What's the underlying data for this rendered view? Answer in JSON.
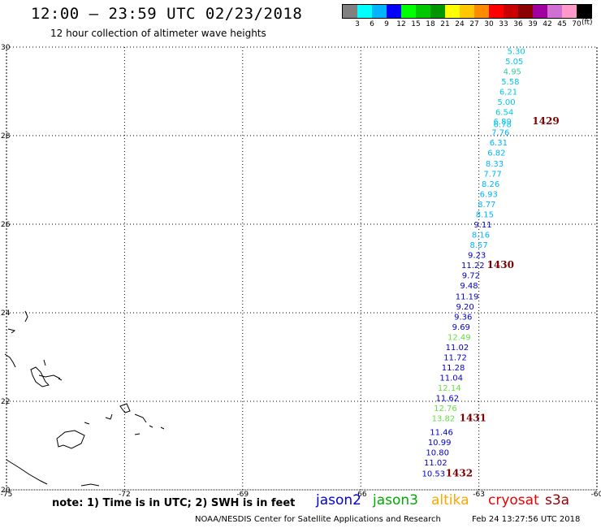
{
  "header": {
    "title": "12:00 – 23:59 UTC 02/23/2018",
    "subtitle": "12 hour collection of altimeter wave heights"
  },
  "legend": {
    "colors": [
      "#808080",
      "#00ffff",
      "#00b4ff",
      "#0000ff",
      "#00ff00",
      "#00c800",
      "#009600",
      "#ffff00",
      "#ffc800",
      "#ff8c00",
      "#ff0000",
      "#c80000",
      "#8b0000",
      "#a000a0",
      "#d070d0",
      "#ff99cc",
      "#000000"
    ],
    "labels": [
      "3",
      "6",
      "9",
      "12",
      "15",
      "18",
      "21",
      "24",
      "27",
      "30",
      "33",
      "36",
      "39",
      "42",
      "45",
      "70"
    ],
    "unit": "(ft)"
  },
  "axes": {
    "lat_labels": [
      "30",
      "28",
      "26",
      "24",
      "22",
      "20"
    ],
    "lon_labels": [
      "-75",
      "-72",
      "-69",
      "-66",
      "-63",
      "-60"
    ]
  },
  "swh_points": [
    {
      "lat": 29.92,
      "lon": -62.05,
      "value": "5.30",
      "color": "#00c8e8"
    },
    {
      "lat": 29.69,
      "lon": -62.1,
      "value": "5.05",
      "color": "#00c8e8"
    },
    {
      "lat": 29.46,
      "lon": -62.15,
      "value": "4.95",
      "color": "#33cc99"
    },
    {
      "lat": 29.23,
      "lon": -62.2,
      "value": "5.58",
      "color": "#00c8e8"
    },
    {
      "lat": 29.0,
      "lon": -62.25,
      "value": "6.21",
      "color": "#00c8e8"
    },
    {
      "lat": 28.77,
      "lon": -62.3,
      "value": "5.00",
      "color": "#00c8e8"
    },
    {
      "lat": 28.54,
      "lon": -62.35,
      "value": "6.54",
      "color": "#00c8e8"
    },
    {
      "lat": 28.33,
      "lon": -62.4,
      "value": "6.89",
      "color": "#00c8e8"
    },
    {
      "lat": 28.27,
      "lon": -62.4,
      "value": "6.78",
      "color": "#00c8e8"
    },
    {
      "lat": 28.08,
      "lon": -62.45,
      "value": "7.76",
      "color": "#00b4ff"
    },
    {
      "lat": 27.85,
      "lon": -62.5,
      "value": "6.31",
      "color": "#00b4ff"
    },
    {
      "lat": 27.62,
      "lon": -62.55,
      "value": "6.82",
      "color": "#00b4ff"
    },
    {
      "lat": 27.38,
      "lon": -62.6,
      "value": "8.33",
      "color": "#00b4ff"
    },
    {
      "lat": 27.15,
      "lon": -62.65,
      "value": "7.77",
      "color": "#00b4ff"
    },
    {
      "lat": 26.92,
      "lon": -62.7,
      "value": "8.26",
      "color": "#00b4ff"
    },
    {
      "lat": 26.69,
      "lon": -62.75,
      "value": "6.93",
      "color": "#00b4ff"
    },
    {
      "lat": 26.46,
      "lon": -62.8,
      "value": "8.77",
      "color": "#00b4ff"
    },
    {
      "lat": 26.23,
      "lon": -62.85,
      "value": "8.15",
      "color": "#00b4ff"
    },
    {
      "lat": 26.0,
      "lon": -62.9,
      "value": "9.11",
      "color": "#0000cc"
    },
    {
      "lat": 25.77,
      "lon": -62.95,
      "value": "8.16",
      "color": "#00b4ff"
    },
    {
      "lat": 25.54,
      "lon": -63.0,
      "value": "8.57",
      "color": "#00b4ff"
    },
    {
      "lat": 25.31,
      "lon": -63.05,
      "value": "9.23",
      "color": "#0000cc"
    },
    {
      "lat": 25.08,
      "lon": -63.15,
      "value": "11.22",
      "color": "#0000cc"
    },
    {
      "lat": 24.85,
      "lon": -63.2,
      "value": "9.72",
      "color": "#0000cc"
    },
    {
      "lat": 24.62,
      "lon": -63.25,
      "value": "9.48",
      "color": "#0000cc"
    },
    {
      "lat": 24.38,
      "lon": -63.3,
      "value": "11.19",
      "color": "#0000cc"
    },
    {
      "lat": 24.15,
      "lon": -63.35,
      "value": "9.20",
      "color": "#0000cc"
    },
    {
      "lat": 23.92,
      "lon": -63.4,
      "value": "9.36",
      "color": "#0000cc"
    },
    {
      "lat": 23.69,
      "lon": -63.45,
      "value": "9.69",
      "color": "#0000cc"
    },
    {
      "lat": 23.46,
      "lon": -63.5,
      "value": "12.49",
      "color": "#66dd44"
    },
    {
      "lat": 23.23,
      "lon": -63.55,
      "value": "11.02",
      "color": "#0000cc"
    },
    {
      "lat": 23.0,
      "lon": -63.6,
      "value": "11.72",
      "color": "#0000cc"
    },
    {
      "lat": 22.77,
      "lon": -63.65,
      "value": "11.28",
      "color": "#0000cc"
    },
    {
      "lat": 22.54,
      "lon": -63.7,
      "value": "11.04",
      "color": "#0000cc"
    },
    {
      "lat": 22.31,
      "lon": -63.75,
      "value": "12.14",
      "color": "#66dd44"
    },
    {
      "lat": 22.08,
      "lon": -63.8,
      "value": "11.62",
      "color": "#0000cc"
    },
    {
      "lat": 21.85,
      "lon": -63.85,
      "value": "12.76",
      "color": "#66dd44"
    },
    {
      "lat": 21.62,
      "lon": -63.9,
      "value": "13.82",
      "color": "#66dd44"
    },
    {
      "lat": 21.31,
      "lon": -63.95,
      "value": "11.46",
      "color": "#0000cc"
    },
    {
      "lat": 21.08,
      "lon": -64.0,
      "value": "10.99",
      "color": "#0000cc"
    },
    {
      "lat": 20.85,
      "lon": -64.05,
      "value": "10.80",
      "color": "#0000cc"
    },
    {
      "lat": 20.62,
      "lon": -64.1,
      "value": "11.02",
      "color": "#0000cc"
    },
    {
      "lat": 20.38,
      "lon": -64.15,
      "value": "10.53",
      "color": "#0000cc"
    }
  ],
  "time_labels": [
    {
      "lat": 28.33,
      "lon": -61.3,
      "value": "1429"
    },
    {
      "lat": 25.08,
      "lon": -62.45,
      "value": "1430"
    },
    {
      "lat": 21.62,
      "lon": -63.15,
      "value": "1431"
    },
    {
      "lat": 20.38,
      "lon": -63.5,
      "value": "1432"
    }
  ],
  "note": "note: 1) Time is in UTC; 2) SWH is in feet",
  "satellites": [
    {
      "name": "jason2",
      "color": "#0000dd"
    },
    {
      "name": "jason3",
      "color": "#00aa00"
    },
    {
      "name": "altika",
      "color": "#ffa500"
    },
    {
      "name": "cryosat",
      "color": "#ee0000"
    },
    {
      "name": "s3a",
      "color": "#990000"
    }
  ],
  "footer": {
    "credit": "NOAA/NESDIS Center for Satellite Applications and Research",
    "timestamp": "Feb 24 13:27:56 UTC 2018"
  }
}
